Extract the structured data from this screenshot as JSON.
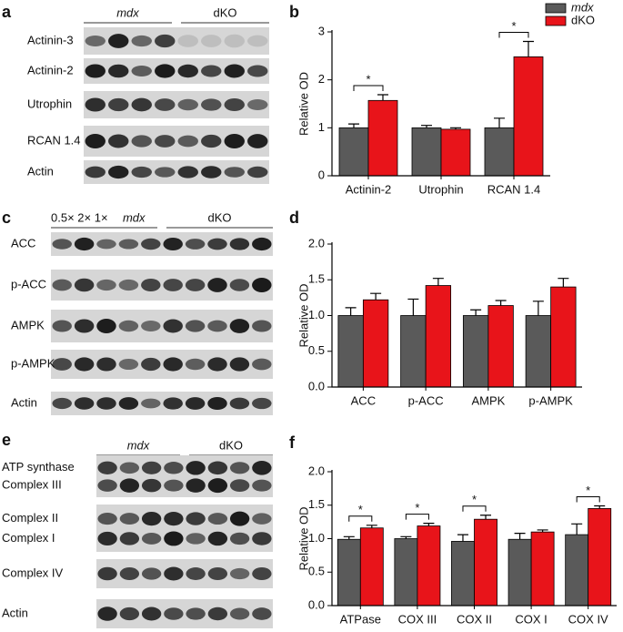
{
  "blot_panels": [
    {
      "letter": "a",
      "groups": [
        "mdx",
        "dKO"
      ],
      "rows": [
        [
          "Actinin-3"
        ],
        [
          "Actinin-2"
        ],
        [
          "Utrophin"
        ],
        [
          "RCAN 1.4"
        ],
        [
          "Actin"
        ]
      ]
    },
    {
      "letter": "c",
      "header_note": "0.5× 2× 1×",
      "groups": [
        "mdx",
        "dKO"
      ],
      "rows": [
        [
          "ACC"
        ],
        [
          "p-ACC"
        ],
        [
          "AMPK"
        ],
        [
          "p-AMPK"
        ],
        [
          "Actin"
        ]
      ]
    },
    {
      "letter": "e",
      "groups": [
        "mdx",
        "dKO"
      ],
      "rows": [
        [
          "ATP synthase",
          "Complex III"
        ],
        [
          "Complex II",
          "Complex I"
        ],
        [
          "Complex IV"
        ],
        [
          "Actin"
        ]
      ]
    }
  ],
  "chart_data": [
    {
      "letter": "b",
      "type": "bar",
      "ylabel": "Relative OD",
      "categories": [
        "Actinin-2",
        "Utrophin",
        "RCAN 1.4"
      ],
      "series": [
        {
          "name": "mdx",
          "color": "#5a5a5a",
          "values": [
            1,
            1,
            1
          ],
          "errors": [
            0.08,
            0.05,
            0.2
          ]
        },
        {
          "name": "dKO",
          "color": "#e8141a",
          "values": [
            1.57,
            0.97,
            2.48
          ],
          "errors": [
            0.12,
            0.03,
            0.32
          ]
        }
      ],
      "ylim": [
        0,
        3
      ],
      "yticks": [
        0,
        1,
        2,
        3
      ],
      "legend": "top-right",
      "annotations": [
        {
          "category": "Actinin-2",
          "text": "*"
        },
        {
          "category": "RCAN 1.4",
          "text": "*"
        }
      ]
    },
    {
      "letter": "d",
      "type": "bar",
      "ylabel": "Relative OD",
      "categories": [
        "ACC",
        "p-ACC",
        "AMPK",
        "p-AMPK"
      ],
      "series": [
        {
          "name": "mdx",
          "color": "#5a5a5a",
          "values": [
            1,
            1,
            1,
            1
          ],
          "errors": [
            0.11,
            0.23,
            0.08,
            0.2
          ]
        },
        {
          "name": "dKO",
          "color": "#e8141a",
          "values": [
            1.22,
            1.42,
            1.14,
            1.4
          ],
          "errors": [
            0.09,
            0.1,
            0.07,
            0.12
          ]
        }
      ],
      "ylim": [
        0,
        2
      ],
      "yticks": [
        {
          "value": 0,
          "label": "0.0"
        },
        0.5,
        {
          "value": 1,
          "label": "1.0"
        },
        1.5,
        {
          "value": 2,
          "label": "2.0"
        }
      ]
    },
    {
      "letter": "f",
      "type": "bar",
      "ylabel": "Relative OD",
      "categories": [
        "ATPase",
        "COX III",
        "COX II",
        "COX I",
        "COX IV"
      ],
      "series": [
        {
          "name": "mdx",
          "color": "#5a5a5a",
          "values": [
            0.99,
            1.0,
            0.96,
            0.99,
            1.06
          ],
          "errors": [
            0.04,
            0.03,
            0.1,
            0.09,
            0.16
          ]
        },
        {
          "name": "dKO",
          "color": "#e8141a",
          "values": [
            1.16,
            1.19,
            1.29,
            1.1,
            1.45
          ],
          "errors": [
            0.04,
            0.04,
            0.06,
            0.03,
            0.04
          ]
        }
      ],
      "ylim": [
        0,
        2
      ],
      "yticks": [
        {
          "value": 0,
          "label": "0.0"
        },
        0.5,
        {
          "value": 1,
          "label": "1.0"
        },
        1.5,
        {
          "value": 2,
          "label": "2.0"
        }
      ],
      "annotations": [
        {
          "category": "ATPase",
          "text": "*"
        },
        {
          "category": "COX III",
          "text": "*"
        },
        {
          "category": "COX II",
          "text": "*"
        },
        {
          "category": "COX IV",
          "text": "*"
        }
      ]
    }
  ]
}
